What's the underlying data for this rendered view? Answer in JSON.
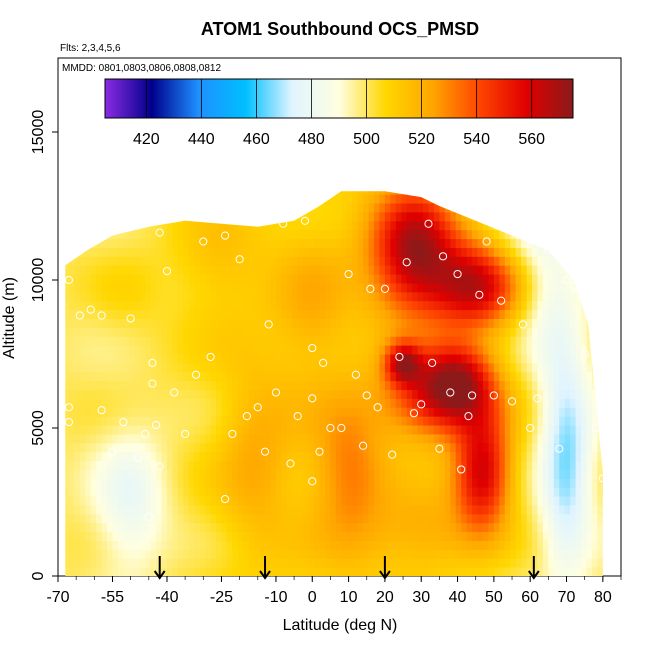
{
  "chart_data": {
    "type": "heatmap",
    "title": "ATOM1 Southbound OCS_PMSD",
    "flights_label": "Flts: 2,3,4,5,6",
    "dates_label": "MMDD: 0801,0803,0806,0808,0812",
    "xlabel": "Latitude (deg N)",
    "ylabel": "Altitude (m)",
    "xlim": [
      -70,
      85
    ],
    "ylim": [
      0,
      17500
    ],
    "x_ticks": [
      -70,
      -55,
      -40,
      -25,
      -10,
      0,
      10,
      20,
      30,
      40,
      50,
      60,
      70,
      80
    ],
    "y_ticks": [
      0,
      5000,
      10000,
      15000
    ],
    "colorbar": {
      "range": [
        405,
        575
      ],
      "ticks": [
        420,
        440,
        460,
        480,
        500,
        520,
        540,
        560
      ],
      "stops": [
        "#8a2be2",
        "#00008b",
        "#1e90ff",
        "#00bfff",
        "#e0f4ff",
        "#ffffe0",
        "#ffd700",
        "#ffa500",
        "#ff4500",
        "#e00000",
        "#8b1a1a"
      ]
    },
    "surface_markers_lat": [
      -42,
      -13,
      20,
      61
    ],
    "profile_top_m": [
      [
        -68,
        10500
      ],
      [
        -62,
        11000
      ],
      [
        -55,
        11500
      ],
      [
        -45,
        11800
      ],
      [
        -35,
        12000
      ],
      [
        -25,
        11900
      ],
      [
        -15,
        11800
      ],
      [
        -5,
        12000
      ],
      [
        2,
        12500
      ],
      [
        8,
        13000
      ],
      [
        20,
        13000
      ],
      [
        30,
        12800
      ],
      [
        35,
        12500
      ],
      [
        45,
        12000
      ],
      [
        55,
        11500
      ],
      [
        65,
        11000
      ],
      [
        72,
        10000
      ],
      [
        76,
        8500
      ],
      [
        78,
        6000
      ],
      [
        80,
        3500
      ],
      [
        80,
        0
      ],
      [
        -68,
        0
      ]
    ],
    "anomalies": [
      {
        "lat": 28,
        "alt": 11000,
        "value": 570,
        "rx": 12,
        "ry": 2200
      },
      {
        "lat": 45,
        "alt": 9800,
        "value": 560,
        "rx": 12,
        "ry": 1500
      },
      {
        "lat": 35,
        "alt": 6000,
        "value": 555,
        "rx": 15,
        "ry": 1400
      },
      {
        "lat": 47,
        "alt": 3500,
        "value": 560,
        "rx": 8,
        "ry": 2000
      },
      {
        "lat": 25,
        "alt": 7200,
        "value": 552,
        "rx": 5,
        "ry": 700
      },
      {
        "lat": 40,
        "alt": 6800,
        "value": 540,
        "rx": 10,
        "ry": 1200
      },
      {
        "lat": 10,
        "alt": 3500,
        "value": 532,
        "rx": 10,
        "ry": 2500
      },
      {
        "lat": -15,
        "alt": 4000,
        "value": 522,
        "rx": 10,
        "ry": 3000
      },
      {
        "lat": -25,
        "alt": 10500,
        "value": 515,
        "rx": 12,
        "ry": 2000
      },
      {
        "lat": 0,
        "alt": 9000,
        "value": 520,
        "rx": 10,
        "ry": 2500
      },
      {
        "lat": -50,
        "alt": 2500,
        "value": 480,
        "rx": 10,
        "ry": 2500
      },
      {
        "lat": 70,
        "alt": 4000,
        "value": 465,
        "rx": 7,
        "ry": 4000
      },
      {
        "lat": 65,
        "alt": 9500,
        "value": 485,
        "rx": 8,
        "ry": 2500
      },
      {
        "lat": 60,
        "alt": 11500,
        "value": 490,
        "rx": 10,
        "ry": 1200
      },
      {
        "lat": -50,
        "alt": 9500,
        "value": 505,
        "rx": 10,
        "ry": 1500
      },
      {
        "lat": 30,
        "alt": 1500,
        "value": 522,
        "rx": 15,
        "ry": 1500
      }
    ],
    "sample_points": [
      [
        -67,
        5200
      ],
      [
        -67,
        5700
      ],
      [
        -67,
        10000
      ],
      [
        -64,
        8800
      ],
      [
        -61,
        9000
      ],
      [
        -58,
        5600
      ],
      [
        -58,
        8800
      ],
      [
        -55,
        4200
      ],
      [
        -52,
        5200
      ],
      [
        -50,
        8700
      ],
      [
        -48,
        4000
      ],
      [
        -46,
        4800
      ],
      [
        -45,
        2000
      ],
      [
        -44,
        6500
      ],
      [
        -44,
        7200
      ],
      [
        -43,
        5100
      ],
      [
        -42,
        3700
      ],
      [
        -42,
        11600
      ],
      [
        -40,
        10300
      ],
      [
        -38,
        6200
      ],
      [
        -35,
        4800
      ],
      [
        -32,
        6800
      ],
      [
        -30,
        11300
      ],
      [
        -28,
        7400
      ],
      [
        -24,
        11500
      ],
      [
        -24,
        2600
      ],
      [
        -22,
        4800
      ],
      [
        -20,
        10700
      ],
      [
        -18,
        5400
      ],
      [
        -15,
        5700
      ],
      [
        -13,
        4200
      ],
      [
        -12,
        8500
      ],
      [
        -10,
        6200
      ],
      [
        -8,
        11900
      ],
      [
        -6,
        3800
      ],
      [
        -4,
        5400
      ],
      [
        -2,
        12000
      ],
      [
        0,
        7700
      ],
      [
        0,
        6000
      ],
      [
        0,
        3200
      ],
      [
        2,
        4200
      ],
      [
        3,
        7200
      ],
      [
        5,
        5000
      ],
      [
        8,
        5000
      ],
      [
        10,
        10200
      ],
      [
        12,
        6800
      ],
      [
        14,
        4400
      ],
      [
        15,
        6100
      ],
      [
        16,
        9700
      ],
      [
        18,
        5700
      ],
      [
        20,
        9700
      ],
      [
        22,
        4100
      ],
      [
        24,
        7400
      ],
      [
        27,
        13100
      ],
      [
        26,
        10600
      ],
      [
        28,
        5500
      ],
      [
        30,
        5800
      ],
      [
        32,
        11900
      ],
      [
        33,
        7200
      ],
      [
        35,
        4300
      ],
      [
        36,
        10800
      ],
      [
        38,
        6200
      ],
      [
        40,
        10200
      ],
      [
        41,
        3600
      ],
      [
        43,
        5400
      ],
      [
        44,
        6100
      ],
      [
        46,
        9500
      ],
      [
        48,
        11300
      ],
      [
        50,
        6100
      ],
      [
        52,
        9300
      ],
      [
        55,
        5900
      ],
      [
        58,
        8500
      ],
      [
        60,
        5000
      ],
      [
        62,
        6000
      ],
      [
        65,
        11000
      ],
      [
        68,
        4300
      ],
      [
        70,
        10000
      ],
      [
        72,
        9800
      ],
      [
        75,
        7500
      ],
      [
        78,
        5000
      ],
      [
        80,
        3300
      ]
    ]
  }
}
